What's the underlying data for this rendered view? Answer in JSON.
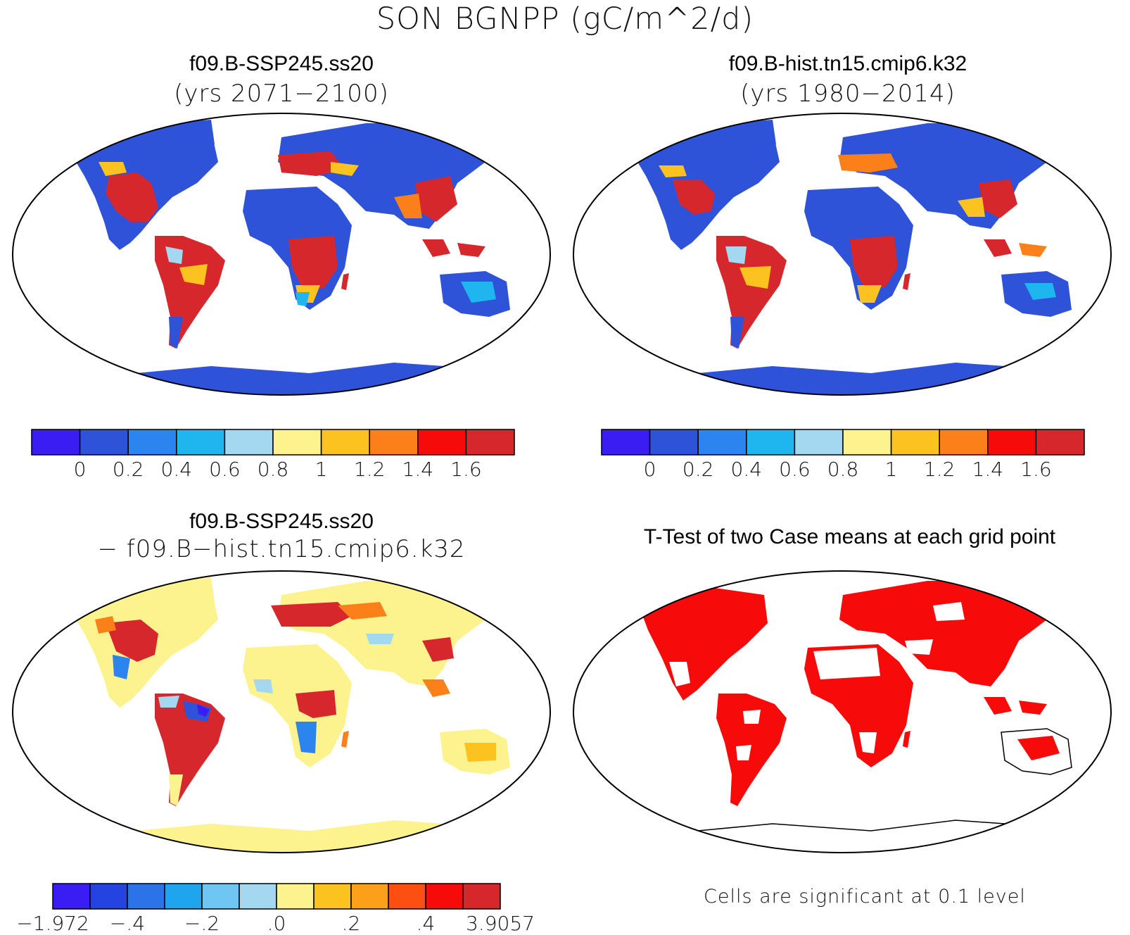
{
  "title": "SON BGNPP (gC/m^2/d)",
  "panels": {
    "top_left": {
      "title": "f09.B-SSP245.ss20",
      "subtitle": "(yrs 2071−2100)"
    },
    "top_right": {
      "title": "f09.B-hist.tn15.cmip6.k32",
      "subtitle": "(yrs 1980−2014)"
    },
    "bottom_left": {
      "title": "f09.B-SSP245.ss20",
      "subtitle": "− f09.B−hist.tn15.cmip6.k32"
    },
    "bottom_right": {
      "title": "T-Test of two Case means at each grid point",
      "note": "Cells are significant at 0.1 level"
    }
  },
  "colorbars": {
    "absolute": {
      "colors": [
        "#3a1df2",
        "#2e52d8",
        "#2c84ee",
        "#1fb6f0",
        "#a3d8f0",
        "#fdf38e",
        "#fcc21f",
        "#fc8019",
        "#f70a0a",
        "#d6282c"
      ],
      "labels": [
        "0",
        "0.2",
        "0.4",
        "0.6",
        "0.8",
        "1",
        "1.2",
        "1.4",
        "1.6"
      ]
    },
    "difference": {
      "colors": [
        "#3a1df2",
        "#2443e0",
        "#2c72e8",
        "#1fa4ee",
        "#6fc6f2",
        "#a3d8f0",
        "#fdf38e",
        "#fcc21f",
        "#fca01a",
        "#fc5012",
        "#f70a0a",
        "#d6282c"
      ],
      "labels": [
        "−1.972",
        "−.4",
        "−.2",
        ".0",
        ".2",
        ".4",
        "3.9057"
      ]
    }
  },
  "map_colors": {
    "absolute_low": "#2e52d8",
    "absolute_high": "#d6282c",
    "difference_base": "#fdf38e",
    "significant": "#f70a0a"
  }
}
